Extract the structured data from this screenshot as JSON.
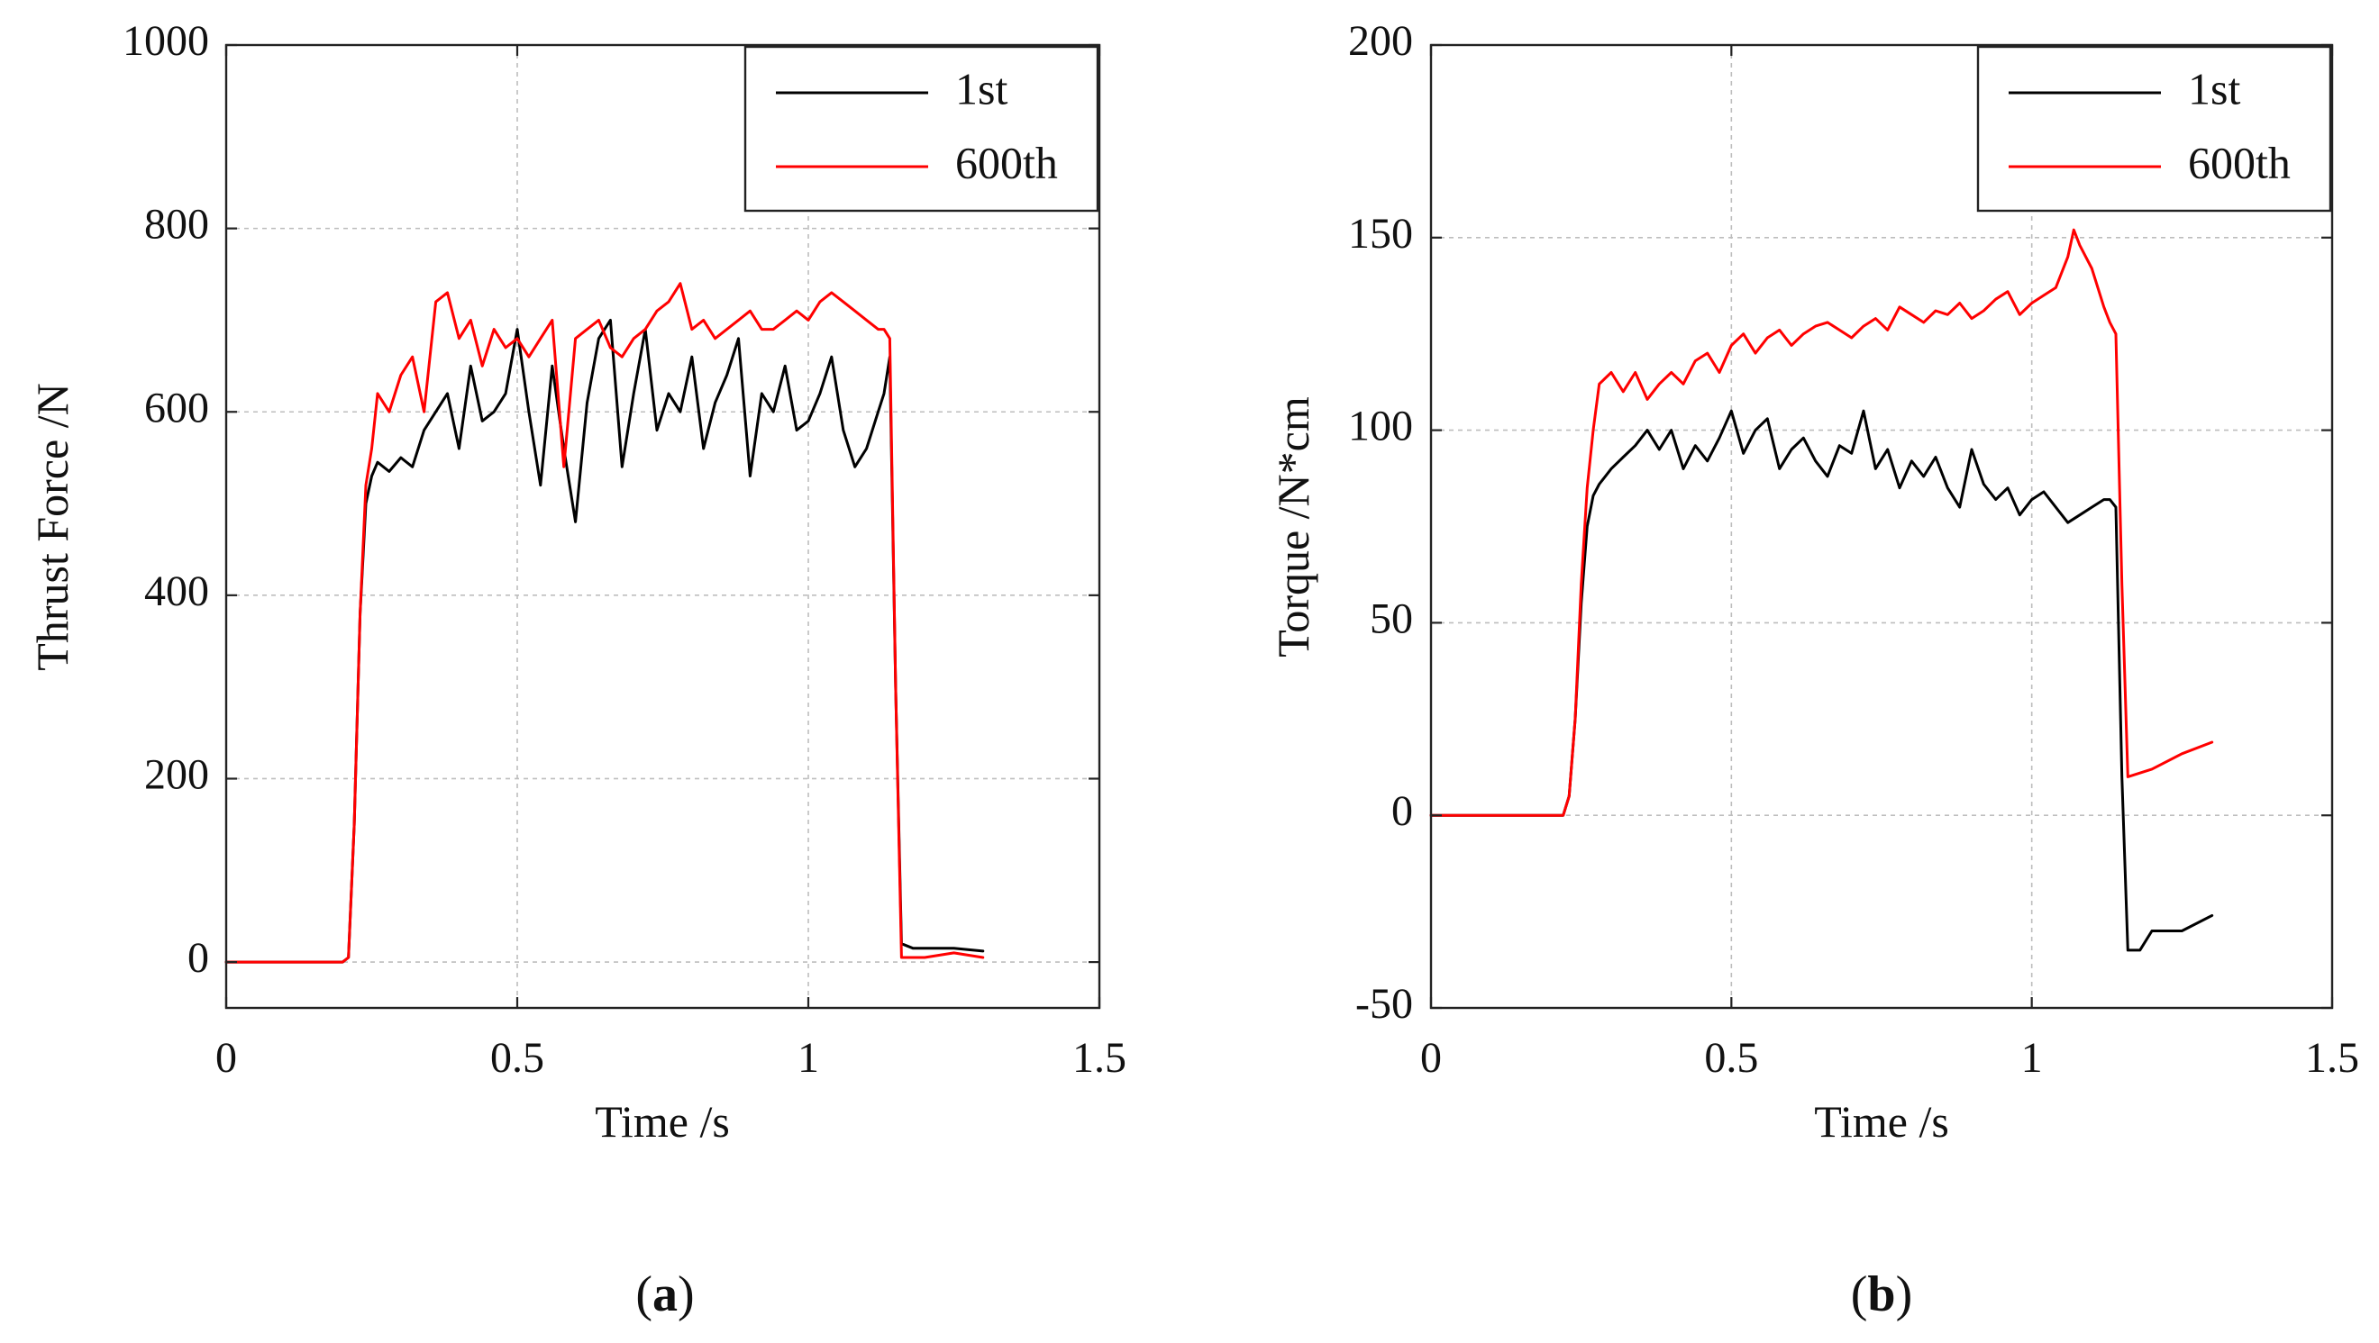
{
  "chart_data": [
    {
      "type": "line",
      "panel_label": "a",
      "title": "",
      "xlabel": "Time /s",
      "ylabel": "Thrust Force /N",
      "xlim": [
        0,
        1.5
      ],
      "ylim": [
        -50,
        1000
      ],
      "xticks": [
        0,
        0.5,
        1,
        1.5
      ],
      "xtick_labels": [
        "0",
        "0.5",
        "1",
        "1.5"
      ],
      "yticks": [
        0,
        200,
        400,
        600,
        800,
        1000
      ],
      "ytick_labels": [
        "0",
        "200",
        "400",
        "600",
        "800",
        "1000"
      ],
      "grid": true,
      "legend_position": "top-right",
      "series": [
        {
          "name": "1st",
          "color": "#000000",
          "x": [
            0,
            0.1,
            0.2,
            0.21,
            0.22,
            0.23,
            0.24,
            0.25,
            0.26,
            0.28,
            0.3,
            0.32,
            0.34,
            0.36,
            0.38,
            0.4,
            0.42,
            0.44,
            0.46,
            0.48,
            0.5,
            0.52,
            0.54,
            0.56,
            0.58,
            0.6,
            0.62,
            0.64,
            0.66,
            0.68,
            0.7,
            0.72,
            0.74,
            0.76,
            0.78,
            0.8,
            0.82,
            0.84,
            0.86,
            0.88,
            0.9,
            0.92,
            0.94,
            0.96,
            0.98,
            1,
            1.02,
            1.04,
            1.06,
            1.08,
            1.1,
            1.12,
            1.13,
            1.14,
            1.15,
            1.16,
            1.18,
            1.2,
            1.25,
            1.3
          ],
          "values": [
            0,
            0,
            0,
            5,
            150,
            380,
            500,
            530,
            545,
            535,
            550,
            540,
            580,
            600,
            620,
            560,
            650,
            590,
            600,
            620,
            690,
            600,
            520,
            650,
            560,
            480,
            610,
            680,
            700,
            540,
            620,
            690,
            580,
            620,
            600,
            660,
            560,
            610,
            640,
            680,
            530,
            620,
            600,
            650,
            580,
            590,
            620,
            660,
            580,
            540,
            560,
            600,
            620,
            660,
            300,
            20,
            15,
            15,
            15,
            12
          ]
        },
        {
          "name": "600th",
          "color": "#ff0000",
          "x": [
            0,
            0.1,
            0.2,
            0.21,
            0.22,
            0.23,
            0.24,
            0.25,
            0.26,
            0.28,
            0.3,
            0.32,
            0.34,
            0.36,
            0.38,
            0.4,
            0.42,
            0.44,
            0.46,
            0.48,
            0.5,
            0.52,
            0.54,
            0.56,
            0.58,
            0.6,
            0.62,
            0.64,
            0.66,
            0.68,
            0.7,
            0.72,
            0.74,
            0.76,
            0.78,
            0.8,
            0.82,
            0.84,
            0.86,
            0.88,
            0.9,
            0.92,
            0.94,
            0.96,
            0.98,
            1,
            1.02,
            1.04,
            1.06,
            1.08,
            1.1,
            1.12,
            1.13,
            1.14,
            1.15,
            1.16,
            1.18,
            1.2,
            1.25,
            1.3
          ],
          "values": [
            0,
            0,
            0,
            5,
            150,
            380,
            520,
            560,
            620,
            600,
            640,
            660,
            600,
            720,
            730,
            680,
            700,
            650,
            690,
            670,
            680,
            660,
            680,
            700,
            540,
            680,
            690,
            700,
            670,
            660,
            680,
            690,
            710,
            720,
            740,
            690,
            700,
            680,
            690,
            700,
            710,
            690,
            690,
            700,
            710,
            700,
            720,
            730,
            720,
            710,
            700,
            690,
            690,
            680,
            300,
            5,
            5,
            5,
            10,
            5
          ]
        }
      ]
    },
    {
      "type": "line",
      "panel_label": "b",
      "title": "",
      "xlabel": "Time /s",
      "ylabel": "Torque /N*cm",
      "xlim": [
        0,
        1.5
      ],
      "ylim": [
        -50,
        200
      ],
      "xticks": [
        0,
        0.5,
        1,
        1.5
      ],
      "xtick_labels": [
        "0",
        "0.5",
        "1",
        "1.5"
      ],
      "yticks": [
        -50,
        0,
        50,
        100,
        150,
        200
      ],
      "ytick_labels": [
        "-50",
        "0",
        "50",
        "100",
        "150",
        "200"
      ],
      "grid": true,
      "legend_position": "top-right",
      "series": [
        {
          "name": "1st",
          "color": "#000000",
          "x": [
            0,
            0.1,
            0.2,
            0.22,
            0.23,
            0.24,
            0.25,
            0.26,
            0.27,
            0.28,
            0.3,
            0.32,
            0.34,
            0.36,
            0.38,
            0.4,
            0.42,
            0.44,
            0.46,
            0.48,
            0.5,
            0.52,
            0.54,
            0.56,
            0.58,
            0.6,
            0.62,
            0.64,
            0.66,
            0.68,
            0.7,
            0.72,
            0.74,
            0.76,
            0.78,
            0.8,
            0.82,
            0.84,
            0.86,
            0.88,
            0.9,
            0.92,
            0.94,
            0.96,
            0.98,
            1,
            1.02,
            1.04,
            1.06,
            1.08,
            1.1,
            1.12,
            1.13,
            1.14,
            1.15,
            1.16,
            1.18,
            1.2,
            1.25,
            1.3
          ],
          "values": [
            0,
            0,
            0,
            0,
            5,
            25,
            55,
            75,
            83,
            86,
            90,
            93,
            96,
            100,
            95,
            100,
            90,
            96,
            92,
            98,
            105,
            94,
            100,
            103,
            90,
            95,
            98,
            92,
            88,
            96,
            94,
            105,
            90,
            95,
            85,
            92,
            88,
            93,
            85,
            80,
            95,
            86,
            82,
            85,
            78,
            82,
            84,
            80,
            76,
            78,
            80,
            82,
            82,
            80,
            10,
            -35,
            -35,
            -30,
            -30,
            -26
          ]
        },
        {
          "name": "600th",
          "color": "#ff0000",
          "x": [
            0,
            0.1,
            0.2,
            0.22,
            0.23,
            0.24,
            0.25,
            0.26,
            0.27,
            0.28,
            0.3,
            0.32,
            0.34,
            0.36,
            0.38,
            0.4,
            0.42,
            0.44,
            0.46,
            0.48,
            0.5,
            0.52,
            0.54,
            0.56,
            0.58,
            0.6,
            0.62,
            0.64,
            0.66,
            0.68,
            0.7,
            0.72,
            0.74,
            0.76,
            0.78,
            0.8,
            0.82,
            0.84,
            0.86,
            0.88,
            0.9,
            0.92,
            0.94,
            0.96,
            0.98,
            1,
            1.02,
            1.04,
            1.06,
            1.07,
            1.08,
            1.1,
            1.12,
            1.13,
            1.14,
            1.15,
            1.16,
            1.2,
            1.25,
            1.3
          ],
          "values": [
            0,
            0,
            0,
            0,
            5,
            25,
            60,
            85,
            100,
            112,
            115,
            110,
            115,
            108,
            112,
            115,
            112,
            118,
            120,
            115,
            122,
            125,
            120,
            124,
            126,
            122,
            125,
            127,
            128,
            126,
            124,
            127,
            129,
            126,
            132,
            130,
            128,
            131,
            130,
            133,
            129,
            131,
            134,
            136,
            130,
            133,
            135,
            137,
            145,
            152,
            148,
            142,
            132,
            128,
            125,
            60,
            10,
            12,
            16,
            19
          ]
        }
      ]
    }
  ]
}
